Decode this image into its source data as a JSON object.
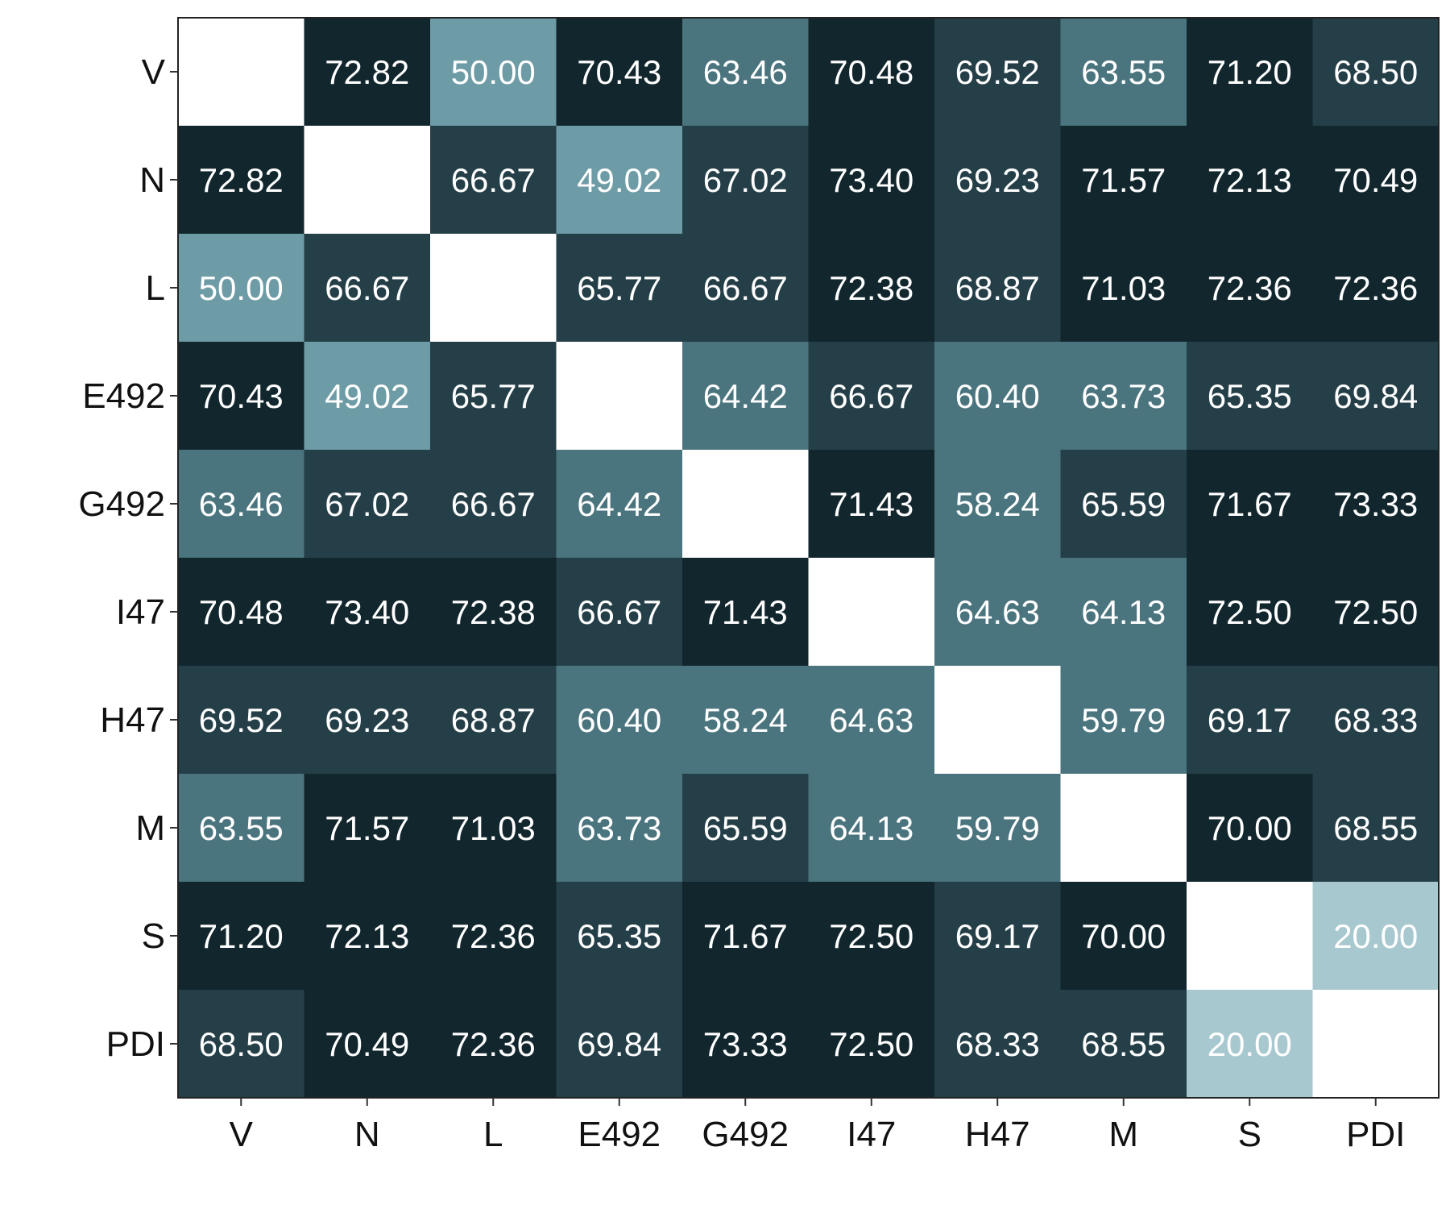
{
  "chart_data": {
    "type": "heatmap",
    "title": "",
    "xlabel": "",
    "ylabel": "",
    "x_categories": [
      "V",
      "N",
      "L",
      "E492",
      "G492",
      "I47",
      "H47",
      "M",
      "S",
      "PDI"
    ],
    "y_categories": [
      "V",
      "N",
      "L",
      "E492",
      "G492",
      "I47",
      "H47",
      "M",
      "S",
      "PDI"
    ],
    "values": [
      [
        null,
        72.82,
        50.0,
        70.43,
        63.46,
        70.48,
        69.52,
        63.55,
        71.2,
        68.5
      ],
      [
        72.82,
        null,
        66.67,
        49.02,
        67.02,
        73.4,
        69.23,
        71.57,
        72.13,
        70.49
      ],
      [
        50.0,
        66.67,
        null,
        65.77,
        66.67,
        72.38,
        68.87,
        71.03,
        72.36,
        72.36
      ],
      [
        70.43,
        49.02,
        65.77,
        null,
        64.42,
        66.67,
        60.4,
        63.73,
        65.35,
        69.84
      ],
      [
        63.46,
        67.02,
        66.67,
        64.42,
        null,
        71.43,
        58.24,
        65.59,
        71.67,
        73.33
      ],
      [
        70.48,
        73.4,
        72.38,
        66.67,
        71.43,
        null,
        64.63,
        64.13,
        72.5,
        72.5
      ],
      [
        69.52,
        69.23,
        68.87,
        60.4,
        58.24,
        64.63,
        null,
        59.79,
        69.17,
        68.33
      ],
      [
        63.55,
        71.57,
        71.03,
        63.73,
        65.59,
        64.13,
        59.79,
        null,
        70.0,
        68.55
      ],
      [
        71.2,
        72.13,
        72.36,
        65.35,
        71.67,
        72.5,
        69.17,
        70.0,
        null,
        20.0
      ],
      [
        68.5,
        70.49,
        72.36,
        69.84,
        73.33,
        72.5,
        68.33,
        68.55,
        20.0,
        null
      ]
    ],
    "color_scale": {
      "bins": [
        {
          "min": 0,
          "max": 30,
          "color": "#a8c8cf"
        },
        {
          "min": 30,
          "max": 55,
          "color": "#6d9ba6"
        },
        {
          "min": 55,
          "max": 65,
          "color": "#4a747e"
        },
        {
          "min": 65,
          "max": 70,
          "color": "#253f48"
        },
        {
          "min": 70,
          "max": 100,
          "color": "#12262e"
        }
      ],
      "empty_color": "#ffffff"
    },
    "legend": "none",
    "grid": false
  }
}
